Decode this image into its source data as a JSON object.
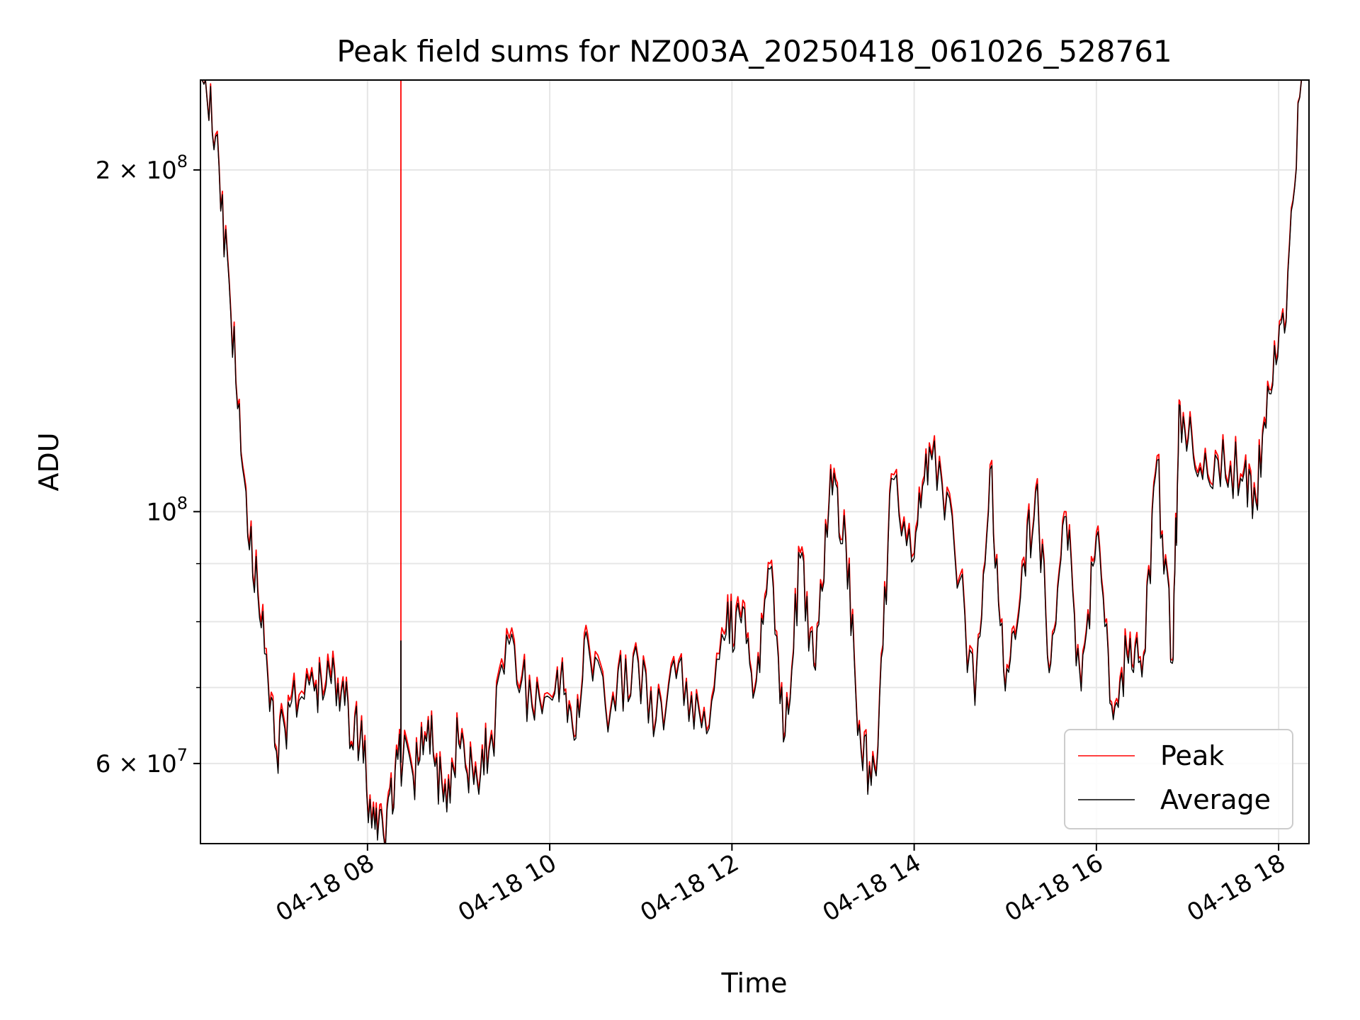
{
  "chart_data": {
    "type": "line",
    "title": "Peak field sums for NZ003A_20250418_061026_528761",
    "xlabel": "Time",
    "ylabel": "ADU",
    "yscale": "log",
    "grid": true,
    "legend_position": "lower right",
    "xlim": [
      "04-18 06:10",
      "04-18 18:20"
    ],
    "ylim": [
      51000000,
      240000000
    ],
    "x_ticks": [
      "04-18 08",
      "04-18 10",
      "04-18 12",
      "04-18 14",
      "04-18 16",
      "04-18 18"
    ],
    "y_ticks": [
      {
        "value": 200000000,
        "base": "2 × 10",
        "exp": "8"
      },
      {
        "value": 100000000,
        "base": "10",
        "exp": "8"
      },
      {
        "value": 60000000,
        "base": "6 × 10",
        "exp": "7"
      }
    ],
    "y_minor_ticks": [
      70000000,
      80000000,
      90000000
    ],
    "series": [
      {
        "name": "Peak",
        "color": "#ff0000",
        "spike": {
          "x": "04-18 08:22",
          "y": 240000000
        },
        "points": [
          [
            "04-18 06:10",
            240000000
          ],
          [
            "04-18 06:20",
            215000000
          ],
          [
            "04-18 06:30",
            150000000
          ],
          [
            "04-18 06:40",
            105000000
          ],
          [
            "04-18 06:50",
            80000000
          ],
          [
            "04-18 07:00",
            62000000
          ],
          [
            "04-18 07:10",
            69000000
          ],
          [
            "04-18 07:25",
            70000000
          ],
          [
            "04-18 07:35",
            73000000
          ],
          [
            "04-18 07:45",
            68000000
          ],
          [
            "04-18 07:55",
            63000000
          ],
          [
            "04-18 08:05",
            53000000
          ],
          [
            "04-18 08:12",
            51500000
          ],
          [
            "04-18 08:20",
            61000000
          ],
          [
            "04-18 08:30",
            59000000
          ],
          [
            "04-18 08:40",
            66000000
          ],
          [
            "04-18 08:50",
            56000000
          ],
          [
            "04-18 09:00",
            63000000
          ],
          [
            "04-18 09:10",
            58000000
          ],
          [
            "04-18 09:20",
            62000000
          ],
          [
            "04-18 09:35",
            79000000
          ],
          [
            "04-18 09:50",
            66000000
          ],
          [
            "04-18 10:05",
            73000000
          ],
          [
            "04-18 10:15",
            65000000
          ],
          [
            "04-18 10:25",
            78000000
          ],
          [
            "04-18 10:40",
            67000000
          ],
          [
            "04-18 10:55",
            75000000
          ],
          [
            "04-18 11:10",
            66000000
          ],
          [
            "04-18 11:25",
            74000000
          ],
          [
            "04-18 11:40",
            65000000
          ],
          [
            "04-18 11:55",
            78000000
          ],
          [
            "04-18 12:05",
            82000000
          ],
          [
            "04-18 12:15",
            70000000
          ],
          [
            "04-18 12:25",
            90000000
          ],
          [
            "04-18 12:35",
            64000000
          ],
          [
            "04-18 12:45",
            92000000
          ],
          [
            "04-18 12:55",
            73000000
          ],
          [
            "04-18 13:05",
            110000000
          ],
          [
            "04-18 13:15",
            95000000
          ],
          [
            "04-18 13:25",
            62000000
          ],
          [
            "04-18 13:35",
            59000000
          ],
          [
            "04-18 13:45",
            108000000
          ],
          [
            "04-18 14:00",
            92000000
          ],
          [
            "04-18 14:10",
            115000000
          ],
          [
            "04-18 14:25",
            100000000
          ],
          [
            "04-18 14:40",
            68000000
          ],
          [
            "04-18 14:50",
            110000000
          ],
          [
            "04-18 15:00",
            70000000
          ],
          [
            "04-18 15:10",
            85000000
          ],
          [
            "04-18 15:20",
            105000000
          ],
          [
            "04-18 15:30",
            74000000
          ],
          [
            "04-18 15:40",
            100000000
          ],
          [
            "04-18 15:50",
            70000000
          ],
          [
            "04-18 16:00",
            96000000
          ],
          [
            "04-18 16:10",
            68000000
          ],
          [
            "04-18 16:20",
            76000000
          ],
          [
            "04-18 16:30",
            72000000
          ],
          [
            "04-18 16:40",
            112000000
          ],
          [
            "04-18 16:50",
            74000000
          ],
          [
            "04-18 16:55",
            125000000
          ],
          [
            "04-18 17:05",
            110000000
          ],
          [
            "04-18 17:20",
            112000000
          ],
          [
            "04-18 17:35",
            108000000
          ],
          [
            "04-18 17:45",
            103000000
          ],
          [
            "04-18 17:55",
            128000000
          ],
          [
            "04-18 18:05",
            148000000
          ],
          [
            "04-18 18:15",
            240000000
          ]
        ]
      },
      {
        "name": "Average",
        "color": "#000000",
        "spike": {
          "x": "04-18 08:22",
          "y": 77000000
        },
        "points": [
          [
            "04-18 06:10",
            240000000
          ],
          [
            "04-18 06:20",
            214000000
          ],
          [
            "04-18 06:30",
            149000000
          ],
          [
            "04-18 06:40",
            104000000
          ],
          [
            "04-18 06:50",
            79000000
          ],
          [
            "04-18 07:00",
            61500000
          ],
          [
            "04-18 07:10",
            68000000
          ],
          [
            "04-18 07:25",
            69500000
          ],
          [
            "04-18 07:35",
            72000000
          ],
          [
            "04-18 07:45",
            67500000
          ],
          [
            "04-18 07:55",
            62500000
          ],
          [
            "04-18 08:05",
            52500000
          ],
          [
            "04-18 08:12",
            51000000
          ],
          [
            "04-18 08:20",
            60500000
          ],
          [
            "04-18 08:30",
            58500000
          ],
          [
            "04-18 08:40",
            65500000
          ],
          [
            "04-18 08:50",
            55500000
          ],
          [
            "04-18 09:00",
            62500000
          ],
          [
            "04-18 09:10",
            57500000
          ],
          [
            "04-18 09:20",
            61500000
          ],
          [
            "04-18 09:35",
            78000000
          ],
          [
            "04-18 09:50",
            65500000
          ],
          [
            "04-18 10:05",
            72500000
          ],
          [
            "04-18 10:15",
            64500000
          ],
          [
            "04-18 10:25",
            77000000
          ],
          [
            "04-18 10:40",
            66500000
          ],
          [
            "04-18 10:55",
            74500000
          ],
          [
            "04-18 11:10",
            65500000
          ],
          [
            "04-18 11:25",
            73500000
          ],
          [
            "04-18 11:40",
            64500000
          ],
          [
            "04-18 11:55",
            77000000
          ],
          [
            "04-18 12:05",
            81000000
          ],
          [
            "04-18 12:15",
            69500000
          ],
          [
            "04-18 12:25",
            89000000
          ],
          [
            "04-18 12:35",
            63500000
          ],
          [
            "04-18 12:45",
            91000000
          ],
          [
            "04-18 12:55",
            72500000
          ],
          [
            "04-18 13:05",
            109000000
          ],
          [
            "04-18 13:15",
            94000000
          ],
          [
            "04-18 13:25",
            61500000
          ],
          [
            "04-18 13:35",
            58500000
          ],
          [
            "04-18 13:45",
            107000000
          ],
          [
            "04-18 14:00",
            91000000
          ],
          [
            "04-18 14:10",
            114000000
          ],
          [
            "04-18 14:25",
            99000000
          ],
          [
            "04-18 14:40",
            67500000
          ],
          [
            "04-18 14:50",
            109000000
          ],
          [
            "04-18 15:00",
            69500000
          ],
          [
            "04-18 15:10",
            84000000
          ],
          [
            "04-18 15:20",
            104000000
          ],
          [
            "04-18 15:30",
            73500000
          ],
          [
            "04-18 15:40",
            99000000
          ],
          [
            "04-18 15:50",
            69500000
          ],
          [
            "04-18 16:00",
            95000000
          ],
          [
            "04-18 16:10",
            67500000
          ],
          [
            "04-18 16:20",
            75000000
          ],
          [
            "04-18 16:30",
            71500000
          ],
          [
            "04-18 16:40",
            111000000
          ],
          [
            "04-18 16:50",
            73500000
          ],
          [
            "04-18 16:55",
            124000000
          ],
          [
            "04-18 17:05",
            109000000
          ],
          [
            "04-18 17:20",
            111000000
          ],
          [
            "04-18 17:35",
            107000000
          ],
          [
            "04-18 17:45",
            102000000
          ],
          [
            "04-18 17:55",
            127000000
          ],
          [
            "04-18 18:05",
            147000000
          ],
          [
            "04-18 18:15",
            240000000
          ]
        ]
      }
    ]
  }
}
